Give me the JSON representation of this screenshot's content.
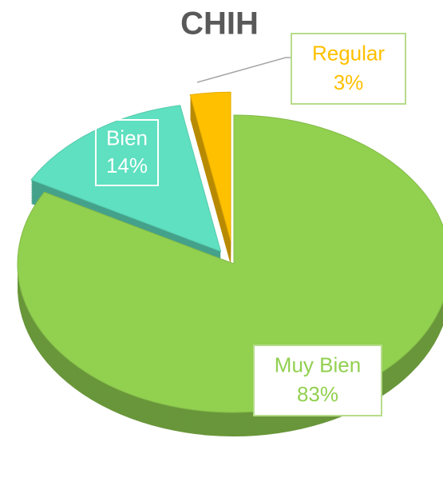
{
  "chart_data": {
    "type": "pie",
    "title": "CHIH",
    "categories": [
      "Muy Bien",
      "Bien",
      "Regular"
    ],
    "values": [
      83,
      14,
      3
    ],
    "value_labels": [
      "83%",
      "14%",
      "3%"
    ],
    "colors": [
      "#92d050",
      "#5fe0c0",
      "#ffc000"
    ]
  }
}
